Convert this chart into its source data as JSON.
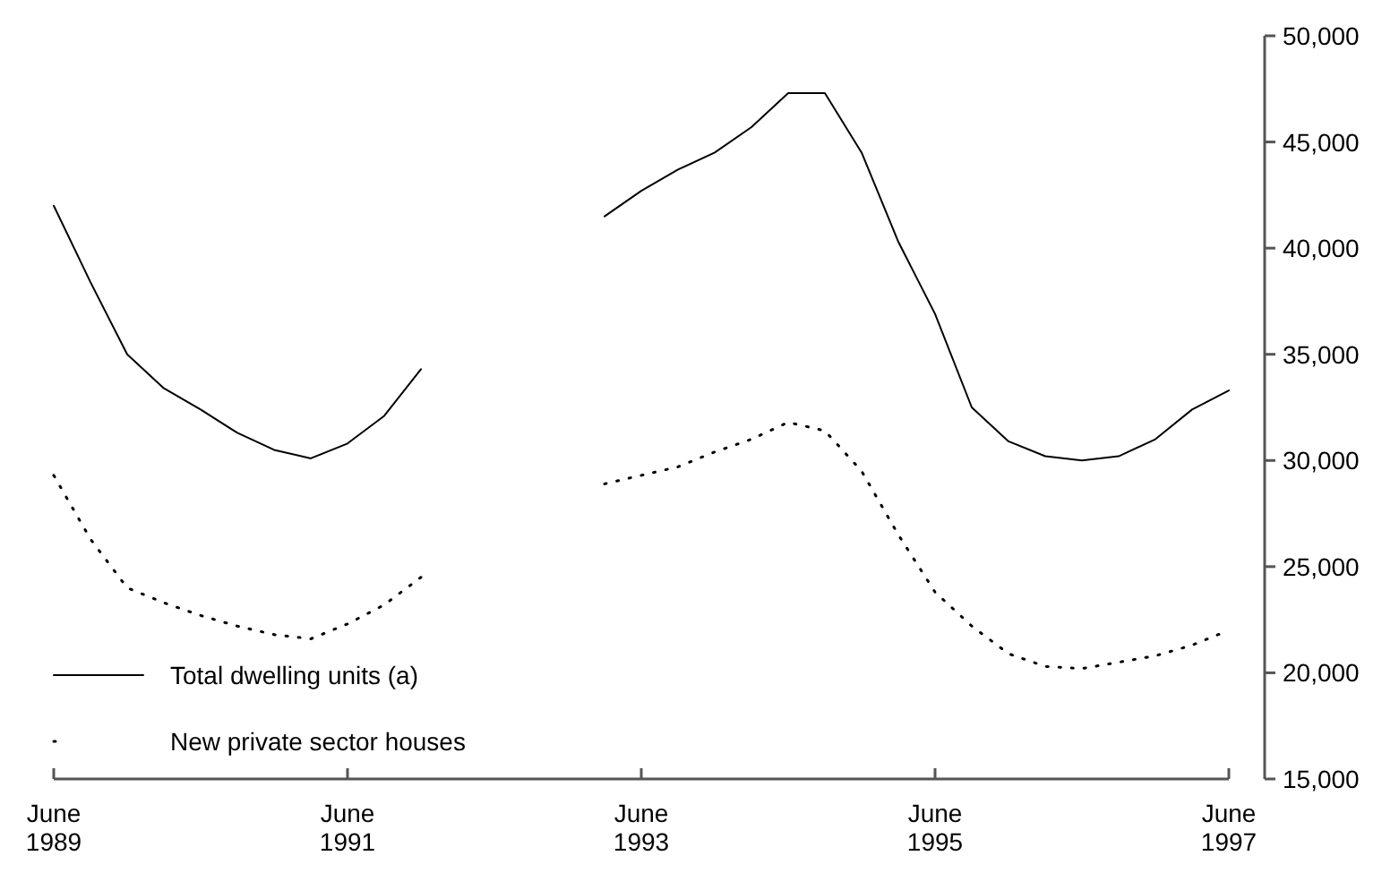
{
  "chart_data": {
    "type": "line",
    "categories": [
      "June 1989",
      null,
      null,
      null,
      null,
      null,
      null,
      null,
      "June 1991",
      null,
      null,
      null,
      null,
      null,
      null,
      null,
      "June 1993",
      null,
      null,
      null,
      null,
      null,
      null,
      null,
      "June 1995",
      null,
      null,
      null,
      null,
      null,
      null,
      null,
      "June 1997"
    ],
    "series": [
      {
        "name": "Total dwelling units (a)",
        "color": "#000000",
        "line_style": "solid",
        "values": [
          42000,
          38400,
          35000,
          33400,
          32400,
          31300,
          30500,
          30100,
          30800,
          32100,
          34300,
          null,
          null,
          null,
          null,
          41500,
          42700,
          43700,
          44500,
          45700,
          47300,
          47300,
          44500,
          40300,
          36900,
          32500,
          30900,
          30200,
          30000,
          30200,
          31000,
          32400,
          33300
        ]
      },
      {
        "name": "New private sector houses",
        "color": "#000000",
        "line_style": "dotted",
        "values": [
          29300,
          26300,
          24000,
          23300,
          22700,
          22200,
          21800,
          21600,
          22300,
          23200,
          24500,
          null,
          null,
          null,
          null,
          28900,
          29300,
          29700,
          30400,
          31000,
          31800,
          31400,
          29500,
          26500,
          23800,
          22200,
          20900,
          20300,
          20200,
          20500,
          20800,
          21300,
          22000
        ]
      }
    ],
    "ylim": [
      15000,
      50000
    ],
    "yticks": [
      {
        "value": 15000,
        "label": "15,000"
      },
      {
        "value": 20000,
        "label": "20,000"
      },
      {
        "value": 25000,
        "label": "25,000"
      },
      {
        "value": 30000,
        "label": "30,000"
      },
      {
        "value": 35000,
        "label": "35,000"
      },
      {
        "value": 40000,
        "label": "40,000"
      },
      {
        "value": 45000,
        "label": "45,000"
      },
      {
        "value": 50000,
        "label": "50,000"
      }
    ],
    "legend": "bottom left",
    "marker": "none",
    "grid": false
  }
}
